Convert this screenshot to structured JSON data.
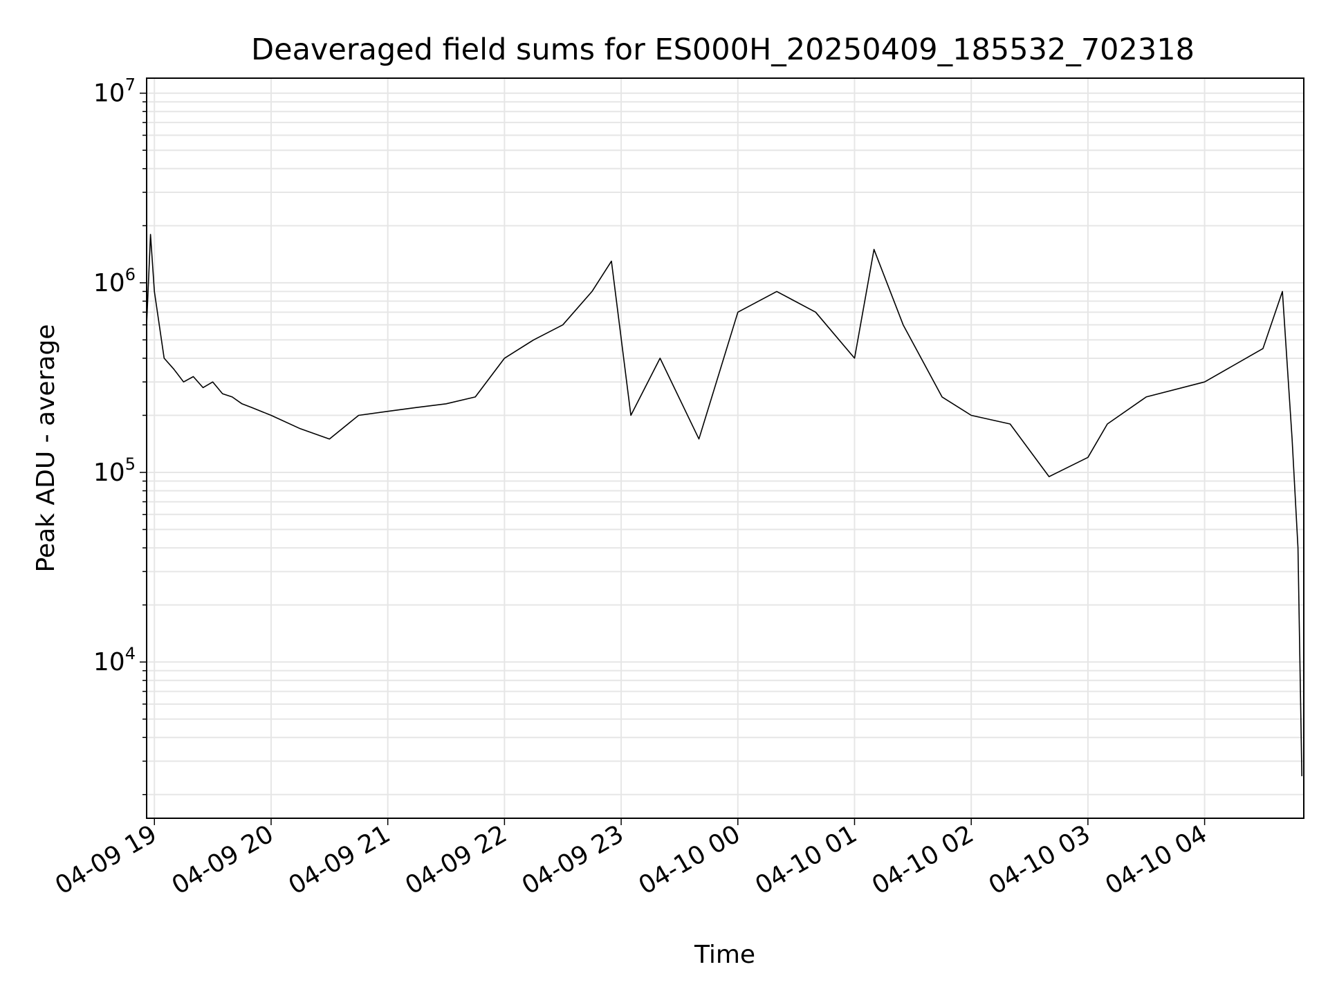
{
  "chart_data": {
    "type": "line",
    "title": "Deaveraged field sums for ES000H_20250409_185532_702318",
    "xlabel": "Time",
    "ylabel": "Peak ADU - average",
    "yscale": "log",
    "ylim": [
      1500,
      12000000
    ],
    "xlim": [
      "2025-04-09 18:56",
      "2025-04-10 04:51"
    ],
    "grid": true,
    "x_ticks": [
      {
        "value": "2025-04-09 19:00",
        "label": "04-09 19"
      },
      {
        "value": "2025-04-09 20:00",
        "label": "04-09 20"
      },
      {
        "value": "2025-04-09 21:00",
        "label": "04-09 21"
      },
      {
        "value": "2025-04-09 22:00",
        "label": "04-09 22"
      },
      {
        "value": "2025-04-09 23:00",
        "label": "04-09 23"
      },
      {
        "value": "2025-04-10 00:00",
        "label": "04-10 00"
      },
      {
        "value": "2025-04-10 01:00",
        "label": "04-10 01"
      },
      {
        "value": "2025-04-10 02:00",
        "label": "04-10 02"
      },
      {
        "value": "2025-04-10 03:00",
        "label": "04-10 03"
      },
      {
        "value": "2025-04-10 04:00",
        "label": "04-10 04"
      }
    ],
    "y_ticks": [
      {
        "value": 10000,
        "base": "10",
        "exp": "4"
      },
      {
        "value": 100000,
        "base": "10",
        "exp": "5"
      },
      {
        "value": 1000000,
        "base": "10",
        "exp": "6"
      },
      {
        "value": 10000000,
        "base": "10",
        "exp": "7"
      }
    ],
    "series": [
      {
        "color": "#000000",
        "points": [
          [
            "2025-04-09 18:56",
            600000
          ],
          [
            "2025-04-09 18:58",
            1800000
          ],
          [
            "2025-04-09 19:00",
            900000
          ],
          [
            "2025-04-09 19:05",
            400000
          ],
          [
            "2025-04-09 19:10",
            350000
          ],
          [
            "2025-04-09 19:15",
            300000
          ],
          [
            "2025-04-09 19:20",
            320000
          ],
          [
            "2025-04-09 19:25",
            280000
          ],
          [
            "2025-04-09 19:30",
            300000
          ],
          [
            "2025-04-09 19:35",
            260000
          ],
          [
            "2025-04-09 19:40",
            250000
          ],
          [
            "2025-04-09 19:45",
            230000
          ],
          [
            "2025-04-09 19:50",
            220000
          ],
          [
            "2025-04-09 20:00",
            200000
          ],
          [
            "2025-04-09 20:15",
            170000
          ],
          [
            "2025-04-09 20:30",
            150000
          ],
          [
            "2025-04-09 20:45",
            200000
          ],
          [
            "2025-04-09 21:00",
            210000
          ],
          [
            "2025-04-09 21:15",
            220000
          ],
          [
            "2025-04-09 21:30",
            230000
          ],
          [
            "2025-04-09 21:45",
            250000
          ],
          [
            "2025-04-09 22:00",
            400000
          ],
          [
            "2025-04-09 22:15",
            500000
          ],
          [
            "2025-04-09 22:30",
            600000
          ],
          [
            "2025-04-09 22:45",
            900000
          ],
          [
            "2025-04-09 22:55",
            1300000
          ],
          [
            "2025-04-09 23:05",
            200000
          ],
          [
            "2025-04-09 23:20",
            400000
          ],
          [
            "2025-04-09 23:40",
            150000
          ],
          [
            "2025-04-10 00:00",
            700000
          ],
          [
            "2025-04-10 00:20",
            900000
          ],
          [
            "2025-04-10 00:40",
            700000
          ],
          [
            "2025-04-10 01:00",
            400000
          ],
          [
            "2025-04-10 01:10",
            1500000
          ],
          [
            "2025-04-10 01:25",
            600000
          ],
          [
            "2025-04-10 01:45",
            250000
          ],
          [
            "2025-04-10 02:00",
            200000
          ],
          [
            "2025-04-10 02:20",
            180000
          ],
          [
            "2025-04-10 02:40",
            95000
          ],
          [
            "2025-04-10 03:00",
            120000
          ],
          [
            "2025-04-10 03:10",
            180000
          ],
          [
            "2025-04-10 03:30",
            250000
          ],
          [
            "2025-04-10 04:00",
            300000
          ],
          [
            "2025-04-10 04:30",
            450000
          ],
          [
            "2025-04-10 04:40",
            900000
          ],
          [
            "2025-04-10 04:45",
            150000
          ],
          [
            "2025-04-10 04:48",
            40000
          ],
          [
            "2025-04-10 04:50",
            2500
          ]
        ]
      }
    ]
  }
}
